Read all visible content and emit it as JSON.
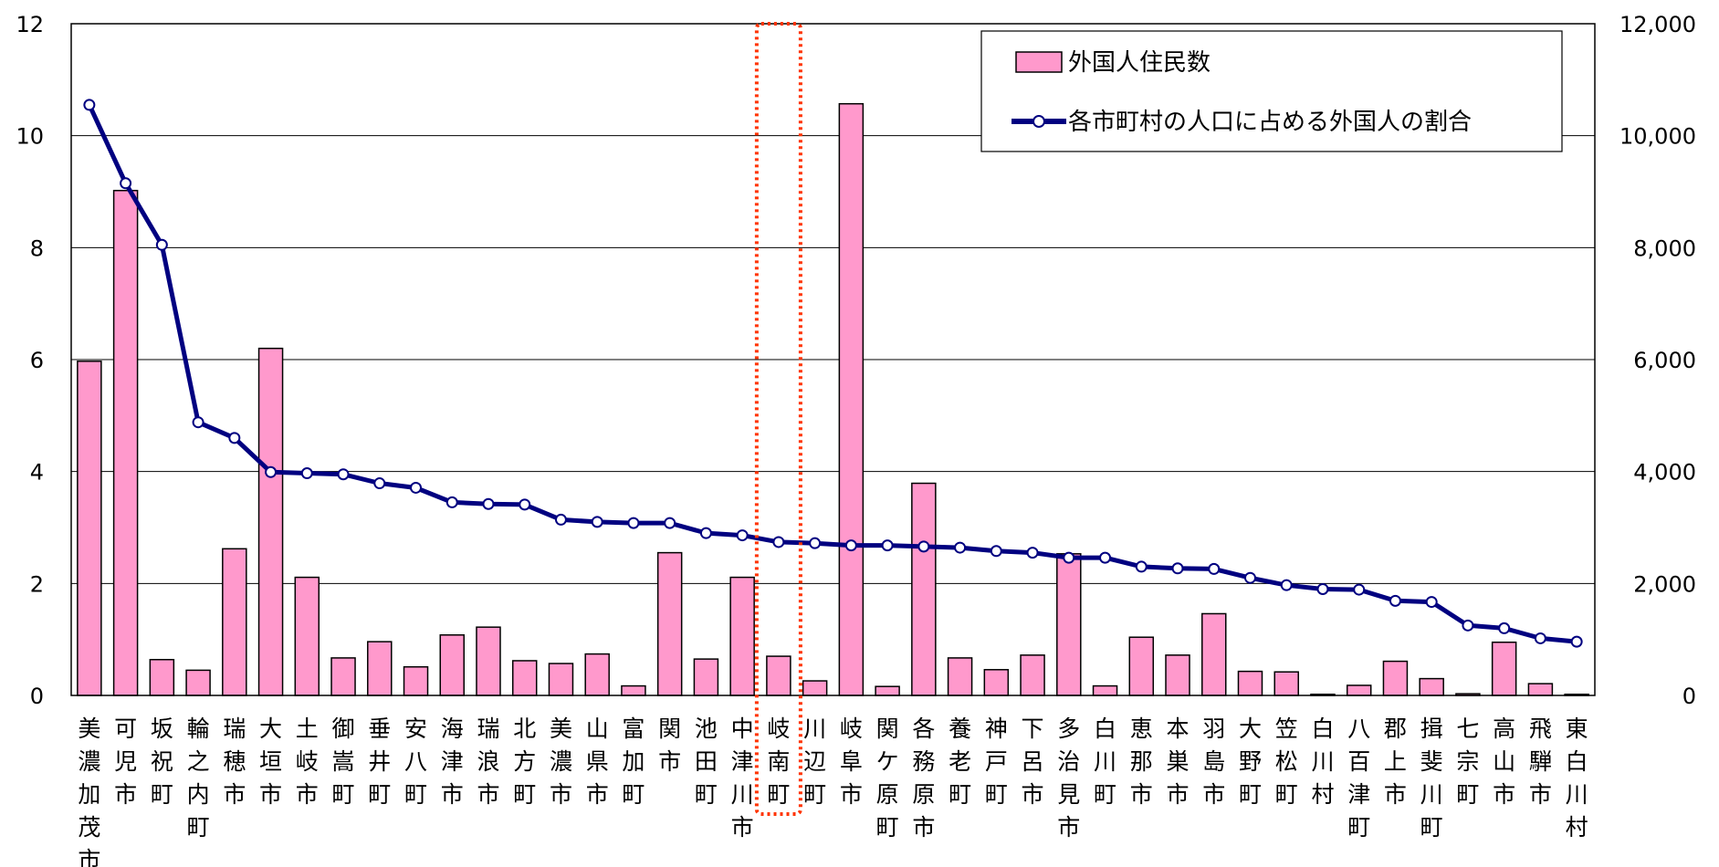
{
  "chart_data": {
    "type": "bar",
    "categories": [
      "美濃加茂市",
      "可児市",
      "坂祝町",
      "輪之内町",
      "瑞穂市",
      "大垣市",
      "土岐市",
      "御嵩町",
      "垂井町",
      "安八町",
      "海津市",
      "瑞浪市",
      "北方町",
      "美濃市",
      "山県市",
      "富加町",
      "関市",
      "池田町",
      "中津川市",
      "岐南町",
      "川辺町",
      "岐阜市",
      "関ケ原町",
      "各務原市",
      "養老町",
      "神戸町",
      "下呂市",
      "多治見市",
      "白川町",
      "恵那市",
      "本巣市",
      "羽島市",
      "大野町",
      "笠松町",
      "白川村",
      "八百津町",
      "郡上市",
      "揖斐川町",
      "七宗町",
      "高山市",
      "飛騨市",
      "東白川村"
    ],
    "series": [
      {
        "name": "外国人住民数",
        "type": "bar",
        "axis": "right",
        "color": "#ff99cc",
        "values": [
          5970,
          9020,
          640,
          450,
          2620,
          6200,
          2110,
          670,
          960,
          510,
          1080,
          1220,
          620,
          570,
          740,
          170,
          2550,
          650,
          2110,
          700,
          260,
          10570,
          160,
          3790,
          670,
          460,
          720,
          2530,
          170,
          1040,
          720,
          1460,
          430,
          420,
          20,
          180,
          610,
          300,
          30,
          950,
          210,
          20
        ]
      },
      {
        "name": "各市町村の人口に占める外国人の割合",
        "type": "line",
        "axis": "left",
        "color": "#000080",
        "values": [
          10.55,
          9.15,
          8.05,
          4.88,
          4.6,
          3.99,
          3.97,
          3.95,
          3.79,
          3.71,
          3.45,
          3.42,
          3.41,
          3.14,
          3.1,
          3.08,
          3.08,
          2.9,
          2.86,
          2.74,
          2.72,
          2.68,
          2.68,
          2.66,
          2.64,
          2.58,
          2.55,
          2.46,
          2.46,
          2.3,
          2.27,
          2.26,
          2.1,
          1.97,
          1.9,
          1.89,
          1.69,
          1.67,
          1.25,
          1.2,
          1.02,
          0.96
        ]
      }
    ],
    "left_axis": {
      "ylim": [
        0,
        12
      ],
      "ticks": [
        "0",
        "2",
        "4",
        "6",
        "8",
        "10",
        "12"
      ]
    },
    "right_axis": {
      "ylim": [
        0,
        12000
      ],
      "ticks": [
        "0",
        "2,000",
        "4,000",
        "6,000",
        "8,000",
        "10,000",
        "12,000"
      ]
    },
    "grid": true,
    "legend_position": "top-right",
    "highlight_category": "岐南町",
    "highlight_color": "#ff3300"
  }
}
